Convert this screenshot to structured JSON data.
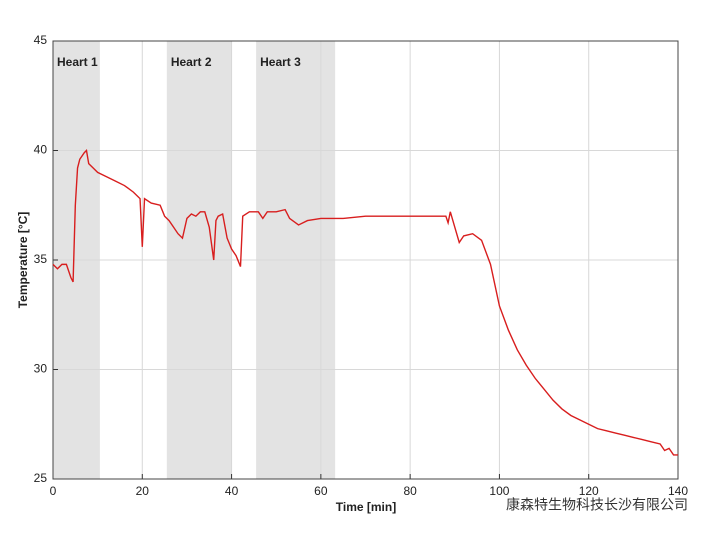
{
  "chart_data": {
    "type": "line",
    "x_label": "Time [min]",
    "y_label": "Temperature [°C]",
    "watermark": "康森特生物科技长沙有限公司",
    "xlim": [
      0,
      140
    ],
    "xticks": [
      0,
      20,
      40,
      60,
      80,
      100,
      120,
      140
    ],
    "ylim": [
      25,
      45
    ],
    "yticks": [
      25,
      30,
      35,
      40,
      45
    ],
    "grid": true,
    "regions": [
      {
        "label": "Heart 1",
        "start": 0,
        "end": 10.5,
        "color": "#e3e3e3"
      },
      {
        "label": "Heart 2",
        "start": 25.5,
        "end": 40.1,
        "color": "#e3e3e3"
      },
      {
        "label": "Heart 3",
        "start": 45.5,
        "end": 63.2,
        "color": "#e3e3e3"
      }
    ],
    "x": [
      0,
      1,
      2,
      3,
      4,
      4.5,
      5,
      5.5,
      6,
      7,
      7.5,
      8,
      9,
      10,
      12,
      14,
      16,
      18,
      19.5,
      20,
      20.5,
      22,
      24,
      25,
      26,
      27,
      28,
      29,
      30,
      31,
      32,
      33,
      34,
      35,
      36,
      36.5,
      37,
      38,
      39,
      40,
      41,
      42,
      42.5,
      44,
      46,
      47,
      48,
      50,
      52,
      53,
      55,
      57,
      60,
      65,
      70,
      80,
      88,
      88.5,
      89,
      90,
      91,
      92,
      94,
      96,
      98,
      100,
      102,
      104,
      106,
      108,
      110,
      112,
      114,
      116,
      118,
      120,
      122,
      124,
      126,
      128,
      130,
      132,
      134,
      136,
      137,
      138,
      139,
      140
    ],
    "series": [
      {
        "name": "Temperature",
        "color": "#d81e1e",
        "values": [
          34.8,
          34.6,
          34.8,
          34.8,
          34.2,
          34.0,
          37.5,
          39.2,
          39.6,
          39.9,
          40.0,
          39.4,
          39.2,
          39.0,
          38.8,
          38.6,
          38.4,
          38.1,
          37.8,
          35.6,
          37.8,
          37.6,
          37.5,
          37.0,
          36.8,
          36.5,
          36.2,
          36.0,
          36.9,
          37.1,
          37.0,
          37.2,
          37.2,
          36.5,
          35.0,
          36.8,
          37.0,
          37.1,
          36.0,
          35.5,
          35.2,
          34.7,
          37.0,
          37.2,
          37.2,
          36.9,
          37.2,
          37.2,
          37.3,
          36.9,
          36.6,
          36.8,
          36.9,
          36.9,
          37.0,
          37.0,
          37.0,
          36.7,
          37.2,
          36.5,
          35.8,
          36.1,
          36.2,
          35.9,
          34.8,
          32.9,
          31.8,
          30.9,
          30.2,
          29.6,
          29.1,
          28.6,
          28.2,
          27.9,
          27.7,
          27.5,
          27.3,
          27.2,
          27.1,
          27.0,
          26.9,
          26.8,
          26.7,
          26.6,
          26.3,
          26.4,
          26.1,
          26.1
        ]
      }
    ]
  }
}
